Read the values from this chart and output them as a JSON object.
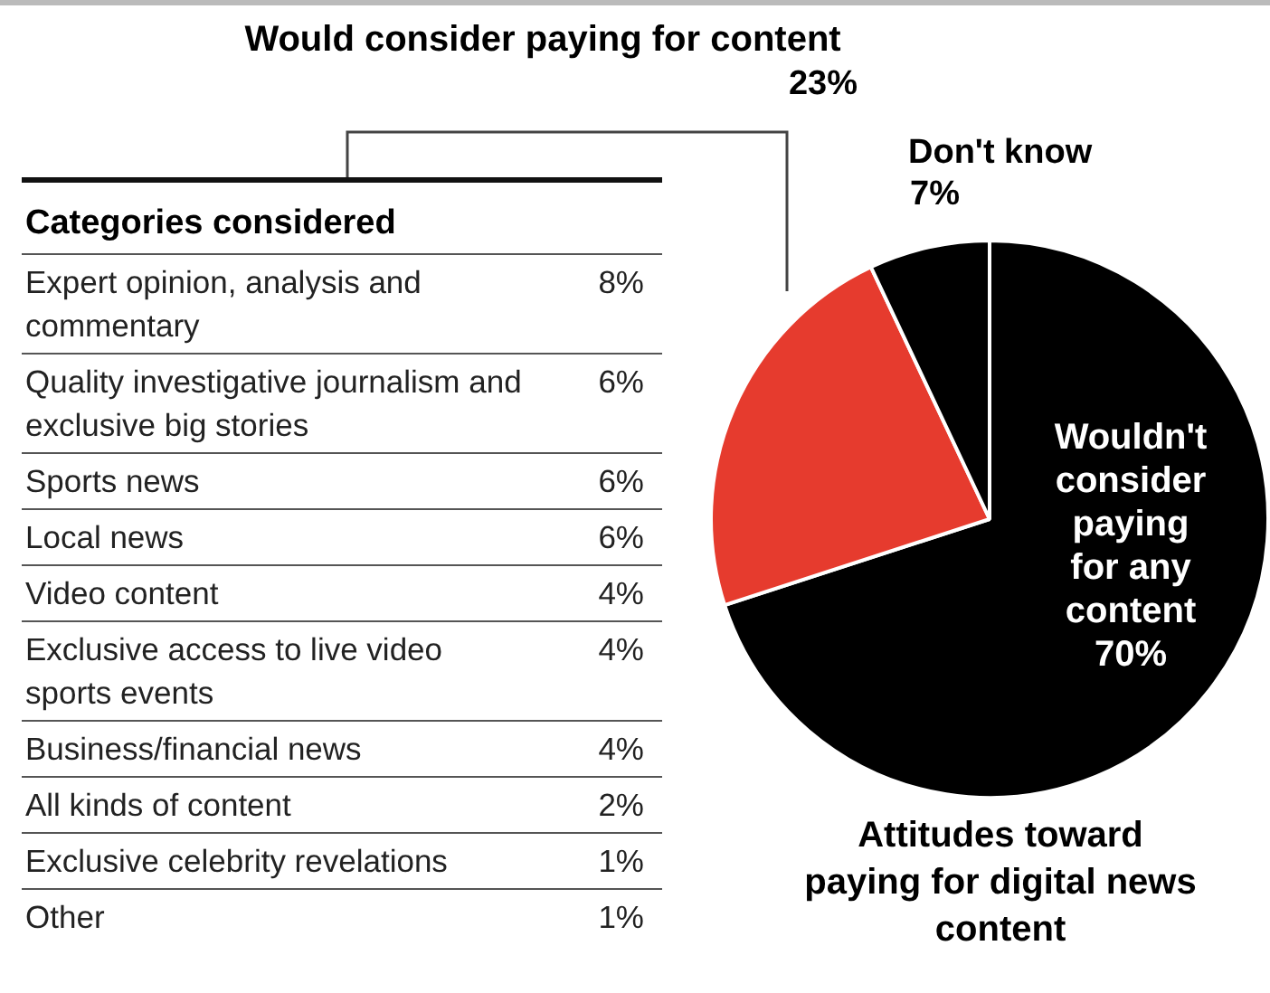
{
  "chart_data": [
    {
      "type": "pie",
      "title": "Attitudes toward paying for digital news content",
      "categories": [
        "Wouldn't consider paying for any content",
        "Would consider paying for content",
        "Don't know"
      ],
      "values": [
        70,
        23,
        7
      ],
      "colors": [
        "#000000",
        "#e63b2e",
        "#000000"
      ],
      "value_labels": [
        "70%",
        "23%",
        "7%"
      ]
    },
    {
      "type": "other",
      "title": "Categories considered",
      "categories": [
        "Expert opinion, analysis and commentary",
        "Quality investigative journalism and exclusive big stories",
        "Sports news",
        "Local news",
        "Video content",
        "Exclusive access to live video sports events",
        "Business/financial news",
        "All kinds of content",
        "Exclusive celebrity revelations",
        "Other"
      ],
      "values": [
        8,
        6,
        6,
        6,
        4,
        4,
        4,
        2,
        1,
        1
      ],
      "value_labels": [
        "8%",
        "6%",
        "6%",
        "6%",
        "4%",
        "4%",
        "4%",
        "2%",
        "1%",
        "1%"
      ]
    }
  ]
}
